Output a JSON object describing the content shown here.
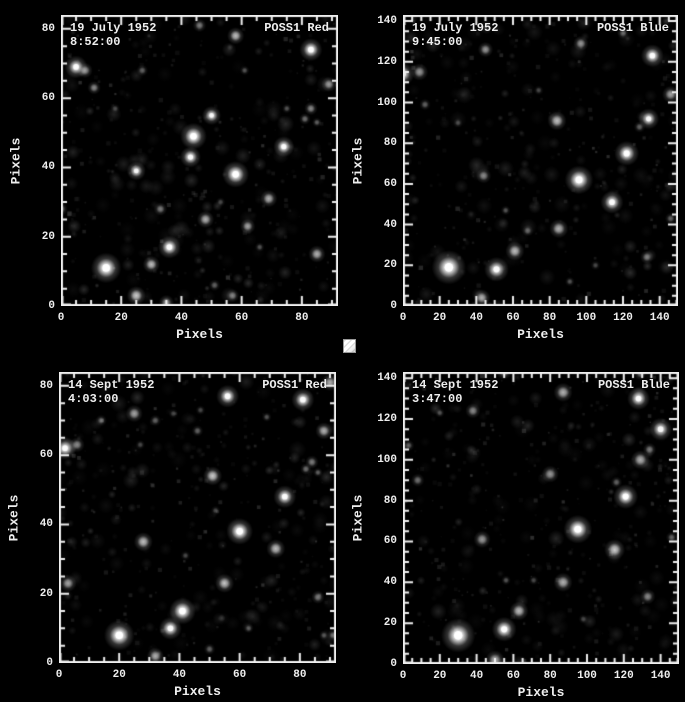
{
  "colors": {
    "background": "#000000",
    "frame": "#efefef",
    "text": "#eeeeee",
    "star": "#ffffff"
  },
  "decorations": {
    "placeholder_square": "broken-image placeholder (white square, diagonal hatch)"
  },
  "chart_data": [
    {
      "type": "scatter",
      "subtype": "star-field-plate-image",
      "date": "19 July 1952",
      "time": "8:52:00",
      "plate": "POSS1 Red",
      "xlabel": "Pixels",
      "ylabel": "Pixels",
      "xlim": [
        0,
        92
      ],
      "ylim": [
        0,
        84
      ],
      "xticks": [
        0,
        20,
        40,
        60,
        80
      ],
      "yticks": [
        0,
        20,
        40,
        60,
        80
      ],
      "minor_tick_step": 5,
      "grid": false,
      "noise_seed": 11,
      "stars": [
        [
          15,
          11,
          8,
          1.0
        ],
        [
          25,
          3,
          5,
          0.8
        ],
        [
          30,
          12,
          4.5,
          0.75
        ],
        [
          36,
          17,
          6,
          0.95
        ],
        [
          35,
          1,
          4,
          0.6
        ],
        [
          57,
          3,
          3.5,
          0.5
        ],
        [
          51,
          6,
          3,
          0.4
        ],
        [
          25,
          39,
          5,
          0.85
        ],
        [
          33,
          28,
          3.5,
          0.5
        ],
        [
          44,
          49,
          7,
          1.0
        ],
        [
          43,
          43,
          5.5,
          0.9
        ],
        [
          50,
          55,
          5,
          0.85
        ],
        [
          48,
          25,
          4.5,
          0.7
        ],
        [
          58,
          38,
          7,
          1.0
        ],
        [
          62,
          23,
          4,
          0.65
        ],
        [
          69,
          31,
          4.5,
          0.7
        ],
        [
          74,
          46,
          5.5,
          0.9
        ],
        [
          83,
          74,
          6,
          0.95
        ],
        [
          58,
          78,
          4.5,
          0.75
        ],
        [
          46,
          81,
          3.5,
          0.5
        ],
        [
          5,
          69,
          6,
          0.9
        ],
        [
          8,
          68,
          4,
          0.6
        ],
        [
          11,
          63,
          3.5,
          0.55
        ],
        [
          85,
          15,
          4.5,
          0.7
        ],
        [
          89,
          64,
          4,
          0.6
        ],
        [
          83,
          57,
          3.5,
          0.55
        ],
        [
          81,
          54,
          3,
          0.45
        ],
        [
          85,
          53,
          2.5,
          0.4
        ],
        [
          0,
          28,
          3.5,
          0.5
        ],
        [
          27,
          68,
          3,
          0.4
        ],
        [
          61,
          68,
          2.5,
          0.35
        ],
        [
          75,
          57,
          2.5,
          0.35
        ],
        [
          18,
          57,
          2.5,
          0.3
        ],
        [
          66,
          17,
          2.5,
          0.35
        ],
        [
          53,
          30,
          2.5,
          0.3
        ]
      ]
    },
    {
      "type": "scatter",
      "subtype": "star-field-plate-image",
      "date": "19 July 1952",
      "time": "9:45:00",
      "plate": "POSS1 Blue",
      "xlabel": "Pixels",
      "ylabel": "Pixels",
      "xlim": [
        0,
        150
      ],
      "ylim": [
        0,
        143
      ],
      "xticks": [
        0,
        20,
        40,
        60,
        80,
        100,
        120,
        140
      ],
      "yticks": [
        0,
        20,
        40,
        60,
        80,
        100,
        120,
        140
      ],
      "minor_tick_step": 5,
      "grid": false,
      "noise_seed": 22,
      "stars": [
        [
          25,
          19,
          9,
          1.0
        ],
        [
          51,
          18,
          6.5,
          0.9
        ],
        [
          61,
          27,
          5,
          0.75
        ],
        [
          43,
          4,
          4.5,
          0.7
        ],
        [
          85,
          38,
          5,
          0.7
        ],
        [
          96,
          62,
          7.5,
          1.0
        ],
        [
          114,
          51,
          6,
          0.9
        ],
        [
          122,
          75,
          6.5,
          0.95
        ],
        [
          84,
          91,
          5,
          0.75
        ],
        [
          44,
          64,
          4,
          0.55
        ],
        [
          45,
          126,
          4,
          0.6
        ],
        [
          97,
          129,
          4,
          0.6
        ],
        [
          136,
          123,
          6,
          0.9
        ],
        [
          134,
          92,
          5.5,
          0.85
        ],
        [
          129,
          88,
          3,
          0.4
        ],
        [
          146,
          104,
          4.5,
          0.65
        ],
        [
          0,
          114,
          6,
          0.85
        ],
        [
          9,
          115,
          4.5,
          0.6
        ],
        [
          12,
          99,
          3,
          0.4
        ],
        [
          133,
          24,
          3.5,
          0.5
        ],
        [
          68,
          37,
          3,
          0.4
        ],
        [
          56,
          47,
          2.5,
          0.35
        ],
        [
          91,
          12,
          2.5,
          0.35
        ],
        [
          146,
          43,
          3,
          0.4
        ],
        [
          120,
          134,
          3,
          0.4
        ],
        [
          30,
          90,
          2.5,
          0.3
        ],
        [
          74,
          106,
          2.5,
          0.3
        ],
        [
          105,
          20,
          2.5,
          0.3
        ]
      ]
    },
    {
      "type": "scatter",
      "subtype": "star-field-plate-image",
      "date": "14 Sept 1952",
      "time": "4:03:00",
      "plate": "POSS1 Red",
      "xlabel": "Pixels",
      "ylabel": "Pixels",
      "xlim": [
        0,
        92
      ],
      "ylim": [
        0,
        84
      ],
      "xticks": [
        0,
        20,
        40,
        60,
        80
      ],
      "yticks": [
        0,
        20,
        40,
        60,
        80
      ],
      "minor_tick_step": 5,
      "grid": false,
      "noise_seed": 33,
      "stars": [
        [
          20,
          8,
          8,
          1.0
        ],
        [
          37,
          10,
          6,
          0.9
        ],
        [
          41,
          15,
          7,
          1.0
        ],
        [
          32,
          2,
          4.5,
          0.7
        ],
        [
          50,
          4,
          3,
          0.4
        ],
        [
          3,
          23,
          4.5,
          0.65
        ],
        [
          2,
          62,
          6,
          0.9
        ],
        [
          6,
          63,
          4,
          0.55
        ],
        [
          28,
          35,
          5,
          0.75
        ],
        [
          55,
          23,
          5,
          0.75
        ],
        [
          60,
          38,
          7,
          1.0
        ],
        [
          72,
          33,
          5,
          0.75
        ],
        [
          75,
          48,
          6,
          0.9
        ],
        [
          51,
          54,
          5,
          0.8
        ],
        [
          56,
          77,
          6,
          0.9
        ],
        [
          81,
          76,
          6,
          0.9
        ],
        [
          90,
          81,
          4.5,
          0.7
        ],
        [
          88,
          67,
          4.5,
          0.7
        ],
        [
          84,
          58,
          3.5,
          0.5
        ],
        [
          82,
          56,
          3,
          0.45
        ],
        [
          86,
          55,
          2.5,
          0.4
        ],
        [
          25,
          72,
          4.5,
          0.65
        ],
        [
          14,
          70,
          3,
          0.4
        ],
        [
          32,
          70,
          3,
          0.4
        ],
        [
          46,
          67,
          3,
          0.4
        ],
        [
          91,
          8,
          3,
          0.45
        ],
        [
          88,
          8,
          2.5,
          0.35
        ],
        [
          86,
          19,
          3.5,
          0.5
        ],
        [
          92,
          30,
          2.5,
          0.35
        ],
        [
          63,
          10,
          2.5,
          0.35
        ],
        [
          52,
          44,
          2.5,
          0.3
        ],
        [
          42,
          31,
          2.5,
          0.3
        ],
        [
          27,
          63,
          2.5,
          0.3
        ],
        [
          69,
          71,
          2.5,
          0.35
        ],
        [
          47,
          73,
          2.5,
          0.3
        ],
        [
          38,
          72,
          2.5,
          0.3
        ]
      ]
    },
    {
      "type": "scatter",
      "subtype": "star-field-plate-image",
      "date": "14 Sept 1952",
      "time": "3:47:00",
      "plate": "POSS1 Blue",
      "xlabel": "Pixels",
      "ylabel": "Pixels",
      "xlim": [
        0,
        150
      ],
      "ylim": [
        0,
        143
      ],
      "xticks": [
        0,
        20,
        40,
        60,
        80,
        100,
        120,
        140
      ],
      "yticks": [
        0,
        20,
        40,
        60,
        80,
        100,
        120,
        140
      ],
      "minor_tick_step": 5,
      "grid": false,
      "noise_seed": 44,
      "stars": [
        [
          30,
          14,
          9,
          1.0
        ],
        [
          55,
          17,
          6.5,
          0.95
        ],
        [
          63,
          26,
          5,
          0.75
        ],
        [
          50,
          2,
          5,
          0.7
        ],
        [
          87,
          40,
          5,
          0.7
        ],
        [
          95,
          66,
          7.5,
          1.0
        ],
        [
          115,
          56,
          5.5,
          0.8
        ],
        [
          121,
          82,
          6.5,
          0.95
        ],
        [
          80,
          93,
          4.5,
          0.6
        ],
        [
          43,
          61,
          4.5,
          0.6
        ],
        [
          87,
          133,
          5,
          0.7
        ],
        [
          38,
          124,
          4,
          0.55
        ],
        [
          128,
          130,
          6,
          0.9
        ],
        [
          140,
          115,
          6,
          0.85
        ],
        [
          129,
          100,
          5,
          0.7
        ],
        [
          134,
          105,
          3.5,
          0.5
        ],
        [
          8,
          90,
          3.5,
          0.45
        ],
        [
          3,
          107,
          3,
          0.4
        ],
        [
          133,
          33,
          4,
          0.55
        ],
        [
          146,
          62,
          3,
          0.4
        ],
        [
          116,
          89,
          3,
          0.4
        ],
        [
          56,
          41,
          2.5,
          0.35
        ],
        [
          55,
          143,
          4,
          0.5
        ],
        [
          129,
          142,
          3,
          0.4
        ],
        [
          71,
          41,
          2.5,
          0.3
        ],
        [
          20,
          123,
          2.5,
          0.35
        ],
        [
          98,
          22,
          2.5,
          0.3
        ]
      ]
    }
  ]
}
